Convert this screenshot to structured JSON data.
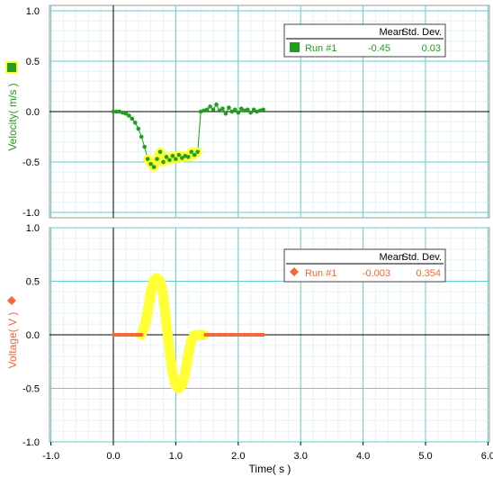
{
  "chart_data": [
    {
      "type": "scatter",
      "ylabel": "Velocity( m/s )",
      "ylim": [
        -1.05,
        1.05
      ],
      "xlim": [
        -1.1,
        6.05
      ],
      "grid": true,
      "yticks": [
        "1.0",
        "0.5",
        "0.0",
        "-0.5",
        "-1.0"
      ],
      "stats": {
        "headers": [
          "Mean",
          "Std. Dev."
        ],
        "run_label": "Run #1",
        "mean": "-0.45",
        "std": "0.03"
      },
      "series": [
        {
          "name": "Run #1",
          "color": "#1f9e1f",
          "marker": "square",
          "x": [
            0.0,
            0.05,
            0.1,
            0.15,
            0.2,
            0.25,
            0.3,
            0.35,
            0.4,
            0.45,
            0.5,
            0.55,
            0.6,
            0.65,
            0.7,
            0.75,
            0.8,
            0.85,
            0.9,
            0.95,
            1.0,
            1.05,
            1.1,
            1.15,
            1.2,
            1.25,
            1.3,
            1.35,
            1.4,
            1.45,
            1.5,
            1.55,
            1.6,
            1.65,
            1.7,
            1.75,
            1.8,
            1.85,
            1.9,
            1.95,
            2.0,
            2.05,
            2.1,
            2.15,
            2.2,
            2.25,
            2.3,
            2.35,
            2.4
          ],
          "y": [
            0.0,
            0.0,
            0.0,
            -0.01,
            -0.02,
            -0.04,
            -0.07,
            -0.11,
            -0.17,
            -0.25,
            -0.35,
            -0.47,
            -0.52,
            -0.55,
            -0.47,
            -0.4,
            -0.5,
            -0.45,
            -0.48,
            -0.44,
            -0.47,
            -0.43,
            -0.46,
            -0.44,
            -0.45,
            -0.4,
            -0.43,
            -0.4,
            0.0,
            0.01,
            0.02,
            0.05,
            0.02,
            0.07,
            0.01,
            0.03,
            -0.02,
            0.04,
            0.0,
            0.02,
            -0.01,
            0.03,
            0.01,
            0.02,
            -0.01,
            0.02,
            0.0,
            0.01,
            0.02
          ]
        },
        {
          "name": "Highlighted region",
          "color": "#ffff33",
          "x": [
            0.55,
            0.6,
            0.65,
            0.7,
            0.75,
            0.8,
            0.85,
            0.9,
            0.95,
            1.0,
            1.05,
            1.1,
            1.15,
            1.2,
            1.25,
            1.3,
            1.35
          ],
          "y": [
            -0.47,
            -0.52,
            -0.55,
            -0.47,
            -0.4,
            -0.5,
            -0.45,
            -0.48,
            -0.44,
            -0.47,
            -0.43,
            -0.46,
            -0.44,
            -0.45,
            -0.4,
            -0.43,
            -0.4
          ]
        }
      ]
    },
    {
      "type": "scatter",
      "xlabel": "Time( s )",
      "ylabel": "Voltage( V )",
      "ylim": [
        -1.05,
        1.05
      ],
      "xlim": [
        -1.1,
        6.05
      ],
      "grid": true,
      "xticks": [
        "-1.0",
        "0.0",
        "1.0",
        "2.0",
        "3.0",
        "4.0",
        "5.0",
        "6.0"
      ],
      "yticks": [
        "1.0",
        "0.5",
        "0.0",
        "-0.5",
        "-1.0"
      ],
      "stats": {
        "headers": [
          "Mean",
          "Std. Dev."
        ],
        "run_label": "Run #1",
        "mean": "-0.003",
        "std": "0.354"
      },
      "series": [
        {
          "name": "Run #1",
          "color": "#f06a3c",
          "marker": "diamond",
          "x": [
            0.0,
            0.1,
            0.2,
            0.3,
            0.4,
            0.45,
            1.5,
            1.6,
            1.7,
            1.8,
            1.9,
            2.0,
            2.1,
            2.2,
            2.3,
            2.4
          ],
          "y": [
            0.0,
            0.0,
            0.0,
            0.0,
            0.0,
            0.0,
            0.0,
            0.0,
            0.0,
            0.0,
            0.0,
            0.0,
            0.0,
            0.0,
            0.0,
            0.0
          ]
        },
        {
          "name": "Highlighted region",
          "color": "#ffff33",
          "x": [
            0.45,
            0.5,
            0.55,
            0.6,
            0.65,
            0.7,
            0.75,
            0.8,
            0.85,
            0.9,
            0.95,
            1.0,
            1.05,
            1.1,
            1.15,
            1.2,
            1.25,
            1.3,
            1.35,
            1.4,
            1.45
          ],
          "y": [
            0.0,
            0.08,
            0.22,
            0.4,
            0.51,
            0.53,
            0.5,
            0.36,
            0.1,
            -0.15,
            -0.36,
            -0.48,
            -0.5,
            -0.47,
            -0.36,
            -0.18,
            -0.05,
            0.0,
            0.0,
            0.0,
            0.0
          ]
        }
      ]
    }
  ]
}
